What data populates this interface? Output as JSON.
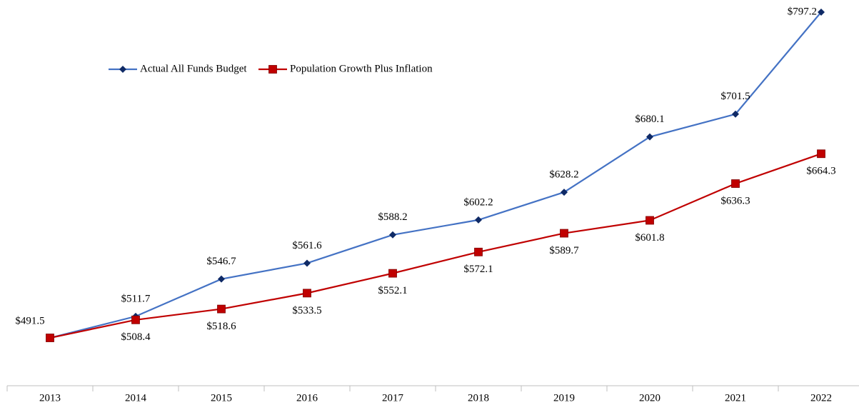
{
  "chart_data": {
    "type": "line",
    "categories": [
      "2013",
      "2014",
      "2015",
      "2016",
      "2017",
      "2018",
      "2019",
      "2020",
      "2021",
      "2022"
    ],
    "series": [
      {
        "name": "Actual All Funds Budget",
        "color": "#4472c4",
        "marker_color": "#0f2a66",
        "marker": "diamond",
        "values": [
          491.5,
          511.7,
          546.7,
          561.6,
          588.2,
          602.2,
          628.2,
          680.1,
          701.5,
          797.2
        ],
        "value_labels": [
          "$491.5",
          "$511.7",
          "$546.7",
          "$561.6",
          "$588.2",
          "$602.2",
          "$628.2",
          "$680.1",
          "$701.5",
          "$797.2"
        ]
      },
      {
        "name": "Population Growth Plus Inflation",
        "color": "#c00000",
        "marker_color": "#c00000",
        "marker": "square",
        "values": [
          491.5,
          508.4,
          518.6,
          533.5,
          552.1,
          572.1,
          589.7,
          601.8,
          636.3,
          664.3
        ],
        "value_labels": [
          null,
          "$508.4",
          "$518.6",
          "$533.5",
          "$552.1",
          "$572.1",
          "$589.7",
          "$601.8",
          "$636.3",
          "$664.3"
        ]
      }
    ],
    "ylim": [
      446.6,
      808.6
    ],
    "legend": "top-left"
  }
}
